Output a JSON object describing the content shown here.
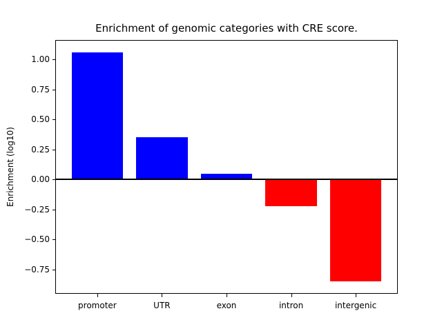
{
  "chart_data": {
    "type": "bar",
    "title": "Enrichment of genomic categories with CRE score.",
    "xlabel": "",
    "ylabel": "Enrichment (log10)",
    "categories": [
      "promoter",
      "UTR",
      "exon",
      "intron",
      "intergenic"
    ],
    "values": [
      1.06,
      0.35,
      0.05,
      -0.22,
      -0.85
    ],
    "bar_color_positive": "#0000ff",
    "bar_color_negative": "#ff0000",
    "ytick_values": [
      1.0,
      0.75,
      0.5,
      0.25,
      0.0,
      -0.25,
      -0.5,
      -0.75
    ],
    "ytick_labels": [
      "1.00",
      "0.75",
      "0.50",
      "0.25",
      "0.00",
      "−0.25",
      "−0.50",
      "−0.75"
    ],
    "ylim": [
      -0.9455,
      1.1555
    ],
    "xlim": [
      -0.64,
      4.64
    ],
    "bar_width": 0.8,
    "zero_line": true,
    "grid": false,
    "legend_position": "none",
    "background_color": "#ffffff",
    "axis_color": "#000000"
  }
}
